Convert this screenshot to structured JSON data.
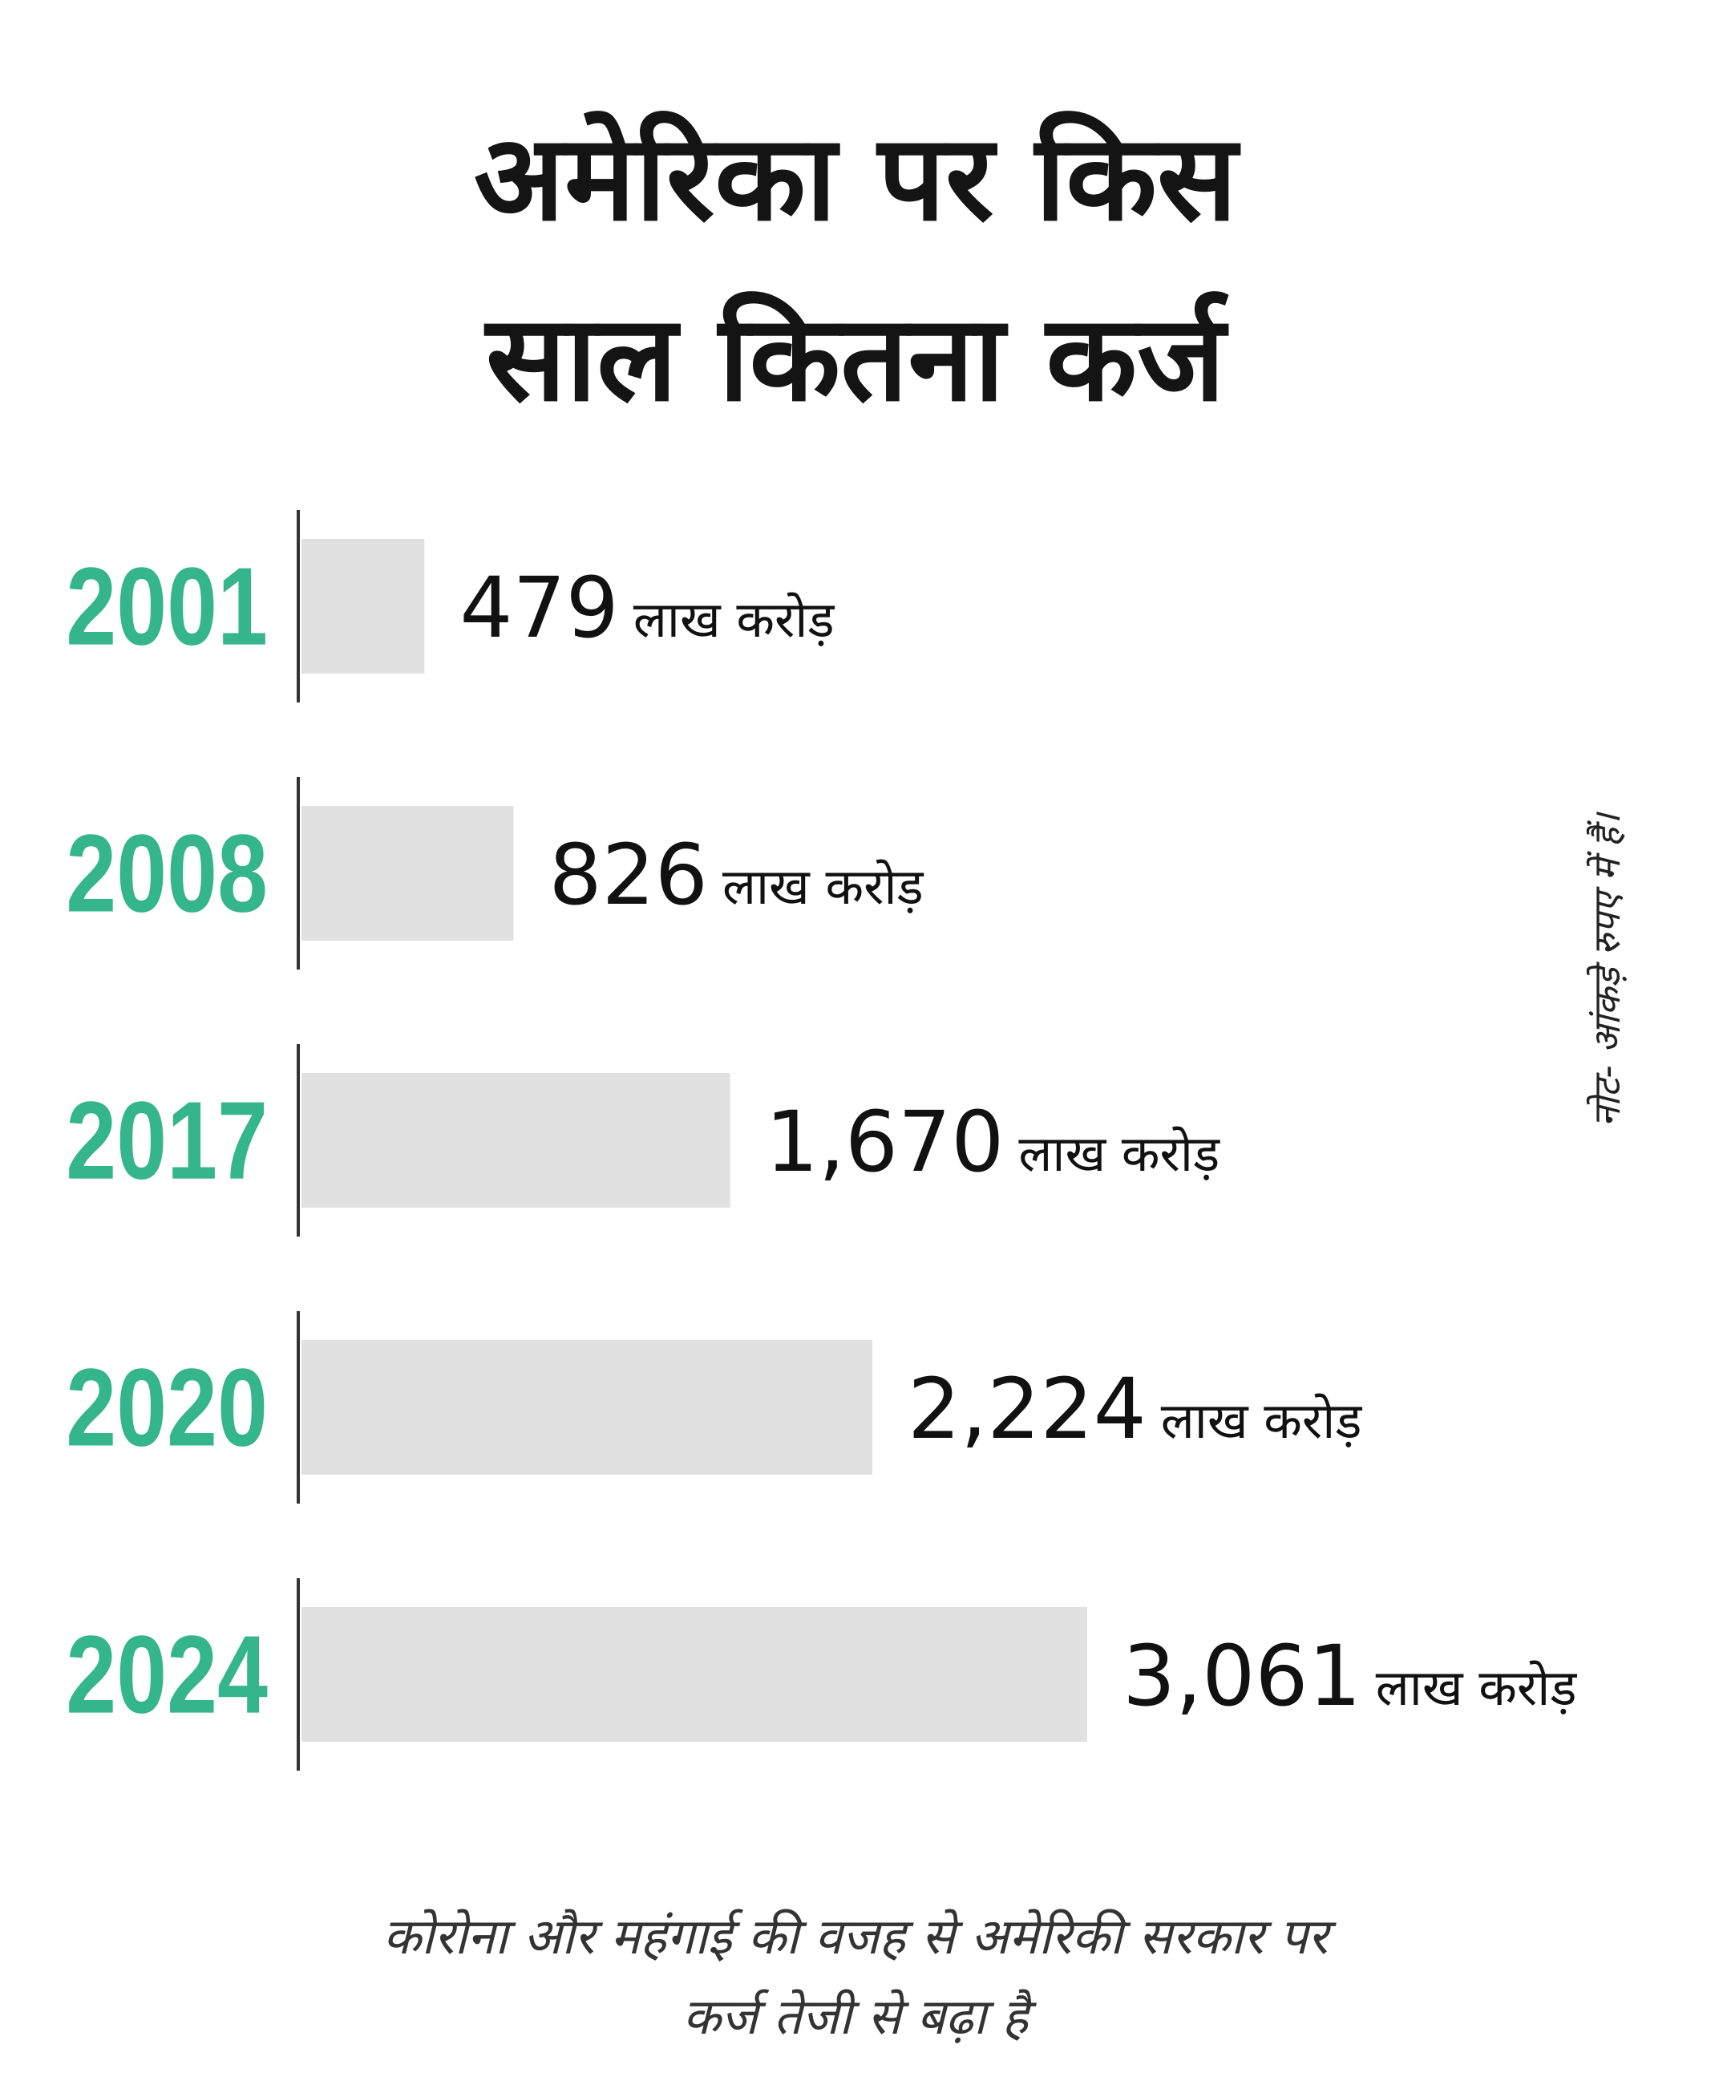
{
  "title": {
    "line1": "अमेरिका पर किस",
    "line2": "साल कितना कर्ज"
  },
  "note": "नोट- आंकड़े रुपए में हैं।",
  "footer": {
    "line1": "कोरोना और महंगाई की वजह से अमेरिकी सरकार पर",
    "line2": "कर्ज तेजी से बढ़ा है"
  },
  "colors": {
    "year_label": "#35b58c",
    "bar": "#e1e1e1",
    "axis": "#333333",
    "value_text": "#111111"
  },
  "chart_data": {
    "type": "bar",
    "orientation": "horizontal",
    "categories": [
      "2001",
      "2008",
      "2017",
      "2020",
      "2024"
    ],
    "values": [
      479,
      826,
      1670,
      2224,
      3061
    ],
    "value_labels": [
      "479",
      "826",
      "1,670",
      "2,224",
      "3,061"
    ],
    "unit": "लाख करोड़",
    "xlim": [
      0,
      3061
    ],
    "grid": false,
    "legend": "none"
  }
}
